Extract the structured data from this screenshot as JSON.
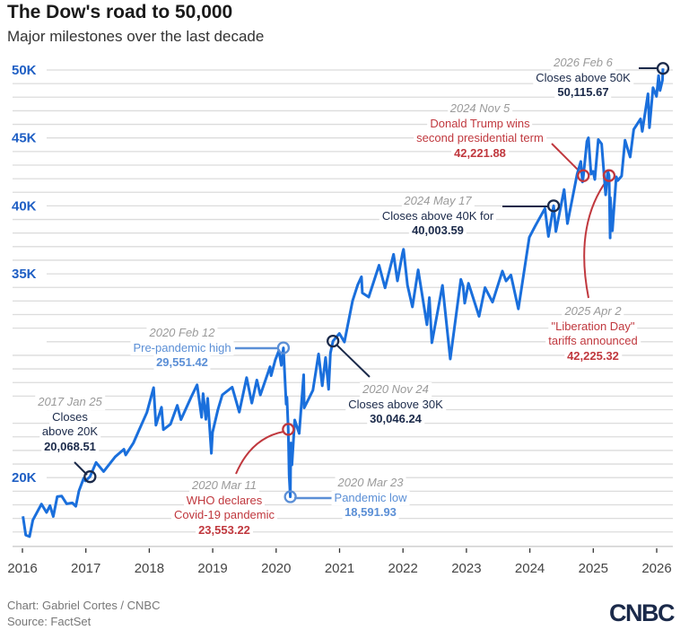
{
  "title": "The Dow's road to 50,000",
  "subtitle": "Major milestones over the last decade",
  "footer": {
    "credit": "Chart: Gabriel Cortes / CNBC",
    "source": "Source: FactSet",
    "logo": "CNBC"
  },
  "colors": {
    "line": "#1a6fdc",
    "navy": "#1b2a4a",
    "red": "#c0383e",
    "light_blue": "#5b8fd6",
    "axis_label": "#1f5fc4"
  },
  "chart_data": {
    "type": "line",
    "title": "The Dow's road to 50,000",
    "subtitle": "Major milestones over the last decade",
    "xlabel": "",
    "ylabel": "",
    "xlim": [
      "2016-01-01",
      "2026-02-15"
    ],
    "ylim": [
      15000,
      50000
    ],
    "grid": true,
    "y_ticks": [
      {
        "value": 20000,
        "label": "20K"
      },
      {
        "value": 35000,
        "label": "35K"
      },
      {
        "value": 40000,
        "label": "40K"
      },
      {
        "value": 45000,
        "label": "45K"
      },
      {
        "value": 50000,
        "label": "50K"
      }
    ],
    "x_ticks": [
      "2016",
      "2017",
      "2018",
      "2019",
      "2020",
      "2021",
      "2022",
      "2023",
      "2024",
      "2025",
      "2026"
    ],
    "series": [
      {
        "points": [
          [
            "2016-01-04",
            17150
          ],
          [
            "2016-01-20",
            15770
          ],
          [
            "2016-02-11",
            15660
          ],
          [
            "2016-03-01",
            16870
          ],
          [
            "2016-04-20",
            18050
          ],
          [
            "2016-05-19",
            17440
          ],
          [
            "2016-06-08",
            17940
          ],
          [
            "2016-06-27",
            17140
          ],
          [
            "2016-07-20",
            18600
          ],
          [
            "2016-08-15",
            18640
          ],
          [
            "2016-09-12",
            18070
          ],
          [
            "2016-10-15",
            18140
          ],
          [
            "2016-11-04",
            17890
          ],
          [
            "2016-11-22",
            19020
          ],
          [
            "2016-12-20",
            19970
          ],
          [
            "2016-12-30",
            19760
          ],
          [
            "2017-01-25",
            20068
          ],
          [
            "2017-03-01",
            21115
          ],
          [
            "2017-04-13",
            20450
          ],
          [
            "2017-06-19",
            21530
          ],
          [
            "2017-08-08",
            22085
          ],
          [
            "2017-08-18",
            21670
          ],
          [
            "2017-10-02",
            22560
          ],
          [
            "2017-11-01",
            23440
          ],
          [
            "2017-12-18",
            24790
          ],
          [
            "2018-01-26",
            26616
          ],
          [
            "2018-02-08",
            23860
          ],
          [
            "2018-03-12",
            25180
          ],
          [
            "2018-03-23",
            23530
          ],
          [
            "2018-05-03",
            23930
          ],
          [
            "2018-06-11",
            25320
          ],
          [
            "2018-07-02",
            24270
          ],
          [
            "2018-08-31",
            25960
          ],
          [
            "2018-10-03",
            26830
          ],
          [
            "2018-10-29",
            24440
          ],
          [
            "2018-11-07",
            26180
          ],
          [
            "2018-11-23",
            24290
          ],
          [
            "2018-12-03",
            25830
          ],
          [
            "2018-12-24",
            21790
          ],
          [
            "2018-12-31",
            23330
          ],
          [
            "2019-01-31",
            25000
          ],
          [
            "2019-02-25",
            26090
          ],
          [
            "2019-04-23",
            26660
          ],
          [
            "2019-06-03",
            24820
          ],
          [
            "2019-07-15",
            27360
          ],
          [
            "2019-08-14",
            25480
          ],
          [
            "2019-09-12",
            27180
          ],
          [
            "2019-10-02",
            26080
          ],
          [
            "2019-11-27",
            28160
          ],
          [
            "2019-12-03",
            27500
          ],
          [
            "2019-12-27",
            28650
          ],
          [
            "2020-01-17",
            29350
          ],
          [
            "2020-01-31",
            28260
          ],
          [
            "2020-02-12",
            29551
          ],
          [
            "2020-02-28",
            25410
          ],
          [
            "2020-03-03",
            25920
          ],
          [
            "2020-03-11",
            23553
          ],
          [
            "2020-03-16",
            20190
          ],
          [
            "2020-03-23",
            18592
          ],
          [
            "2020-03-26",
            22550
          ],
          [
            "2020-04-01",
            20940
          ],
          [
            "2020-04-17",
            24240
          ],
          [
            "2020-05-13",
            23250
          ],
          [
            "2020-06-08",
            27570
          ],
          [
            "2020-06-11",
            25130
          ],
          [
            "2020-07-31",
            26430
          ],
          [
            "2020-09-02",
            29100
          ],
          [
            "2020-09-23",
            26760
          ],
          [
            "2020-10-12",
            28840
          ],
          [
            "2020-10-30",
            26500
          ],
          [
            "2020-11-09",
            29160
          ],
          [
            "2020-11-24",
            30046
          ],
          [
            "2020-12-31",
            30606
          ],
          [
            "2021-01-29",
            29980
          ],
          [
            "2021-03-17",
            33015
          ],
          [
            "2021-04-16",
            34200
          ],
          [
            "2021-05-07",
            34780
          ],
          [
            "2021-05-12",
            33590
          ],
          [
            "2021-06-18",
            33290
          ],
          [
            "2021-08-16",
            35630
          ],
          [
            "2021-09-20",
            33970
          ],
          [
            "2021-11-08",
            36430
          ],
          [
            "2021-11-30",
            34480
          ],
          [
            "2021-12-29",
            36490
          ],
          [
            "2022-01-04",
            36800
          ],
          [
            "2022-01-27",
            34160
          ],
          [
            "2022-02-24",
            32560
          ],
          [
            "2022-03-29",
            35290
          ],
          [
            "2022-05-19",
            31250
          ],
          [
            "2022-06-02",
            33250
          ],
          [
            "2022-06-16",
            29930
          ],
          [
            "2022-08-16",
            34150
          ],
          [
            "2022-09-30",
            28730
          ],
          [
            "2022-11-30",
            34590
          ],
          [
            "2022-12-13",
            34110
          ],
          [
            "2022-12-22",
            32840
          ],
          [
            "2023-01-13",
            34300
          ],
          [
            "2023-03-15",
            31870
          ],
          [
            "2023-04-18",
            33980
          ],
          [
            "2023-05-31",
            32910
          ],
          [
            "2023-07-27",
            35200
          ],
          [
            "2023-08-17",
            34470
          ],
          [
            "2023-09-14",
            34910
          ],
          [
            "2023-10-27",
            32420
          ],
          [
            "2023-12-29",
            37690
          ],
          [
            "2024-02-01",
            38520
          ],
          [
            "2024-03-28",
            39810
          ],
          [
            "2024-04-17",
            37750
          ],
          [
            "2024-05-17",
            40004
          ],
          [
            "2024-05-30",
            38110
          ],
          [
            "2024-07-17",
            41200
          ],
          [
            "2024-08-05",
            38700
          ],
          [
            "2024-09-30",
            42330
          ],
          [
            "2024-10-21",
            43270
          ],
          [
            "2024-10-31",
            41760
          ],
          [
            "2024-11-05",
            42222
          ],
          [
            "2024-11-25",
            44740
          ],
          [
            "2024-12-04",
            45010
          ],
          [
            "2024-12-19",
            42340
          ],
          [
            "2024-12-31",
            42540
          ],
          [
            "2025-01-10",
            41940
          ],
          [
            "2025-01-30",
            44880
          ],
          [
            "2025-02-18",
            44560
          ],
          [
            "2025-03-13",
            40810
          ],
          [
            "2025-03-25",
            42590
          ],
          [
            "2025-04-02",
            42225
          ],
          [
            "2025-04-08",
            37645
          ],
          [
            "2025-04-09",
            40610
          ],
          [
            "2025-04-21",
            38170
          ],
          [
            "2025-05-13",
            42140
          ],
          [
            "2025-05-22",
            41860
          ],
          [
            "2025-06-13",
            42200
          ],
          [
            "2025-07-03",
            44830
          ],
          [
            "2025-08-01",
            43590
          ],
          [
            "2025-08-22",
            45630
          ],
          [
            "2025-09-30",
            46400
          ],
          [
            "2025-10-10",
            45480
          ],
          [
            "2025-11-12",
            48250
          ],
          [
            "2025-11-20",
            45750
          ],
          [
            "2025-12-11",
            48700
          ],
          [
            "2025-12-31",
            48060
          ],
          [
            "2026-01-12",
            49590
          ],
          [
            "2026-01-20",
            48490
          ],
          [
            "2026-02-03",
            49240
          ],
          [
            "2026-02-06",
            50116
          ]
        ]
      }
    ],
    "annotations": [
      {
        "date_label": "2017 Jan 25",
        "lines": [
          "Closes",
          "above 20K"
        ],
        "value_label": "20,068.51",
        "point": [
          "2017-01-25",
          20068.51
        ],
        "color": "#1b2a4a"
      },
      {
        "date_label": "2020 Feb 12",
        "lines": [
          "Pre-pandemic high"
        ],
        "value_label": "29,551.42",
        "point": [
          "2020-02-12",
          29551.42
        ],
        "color": "#5b8fd6"
      },
      {
        "date_label": "2020 Mar 11",
        "lines": [
          "WHO declares",
          "Covid-19 pandemic"
        ],
        "value_label": "23,553.22",
        "point": [
          "2020-03-11",
          23553.22
        ],
        "color": "#c0383e"
      },
      {
        "date_label": "2020 Mar 23",
        "lines": [
          "Pandemic low"
        ],
        "value_label": "18,591.93",
        "point": [
          "2020-03-23",
          18591.93
        ],
        "color": "#5b8fd6"
      },
      {
        "date_label": "2020 Nov 24",
        "lines": [
          "Closes above 30K"
        ],
        "value_label": "30,046.24",
        "point": [
          "2020-11-24",
          30046.24
        ],
        "color": "#1b2a4a"
      },
      {
        "date_label": "2024 May 17",
        "lines": [
          "Closes above 40K for"
        ],
        "value_label": "40,003.59",
        "point": [
          "2024-05-17",
          40003.59
        ],
        "color": "#1b2a4a"
      },
      {
        "date_label": "2024 Nov 5",
        "lines": [
          "Donald Trump wins",
          "second presidential term"
        ],
        "value_label": "42,221.88",
        "point": [
          "2024-11-05",
          42221.88
        ],
        "color": "#c0383e"
      },
      {
        "date_label": "2025 Apr 2",
        "lines": [
          "\"Liberation Day\"",
          "tariffs announced"
        ],
        "value_label": "42,225.32",
        "point": [
          "2025-04-02",
          42225.32
        ],
        "color": "#c0383e"
      },
      {
        "date_label": "2026 Feb 6",
        "lines": [
          "Closes above 50K"
        ],
        "value_label": "50,115.67",
        "point": [
          "2026-02-06",
          50115.67
        ],
        "color": "#1b2a4a"
      }
    ]
  }
}
